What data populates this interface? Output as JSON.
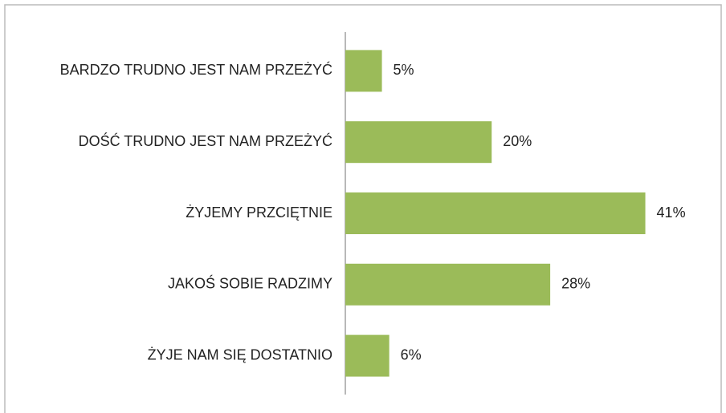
{
  "chart_data": {
    "type": "bar",
    "orientation": "horizontal",
    "categories": [
      "BARDZO TRUDNO JEST NAM PRZEŻYĆ",
      "DOŚĆ TRUDNO JEST NAM PRZEŻYĆ",
      "ŻYJEMY PRZCIĘTNIE",
      "JAKOŚ SOBIE RADZIMY",
      "ŻYJE NAM SIĘ DOSTATNIO"
    ],
    "values": [
      5,
      20,
      41,
      28,
      6
    ],
    "value_labels": [
      "5%",
      "20%",
      "41%",
      "28%",
      "6%"
    ],
    "color": "#9bbb59",
    "xlim": [
      0,
      45
    ]
  }
}
